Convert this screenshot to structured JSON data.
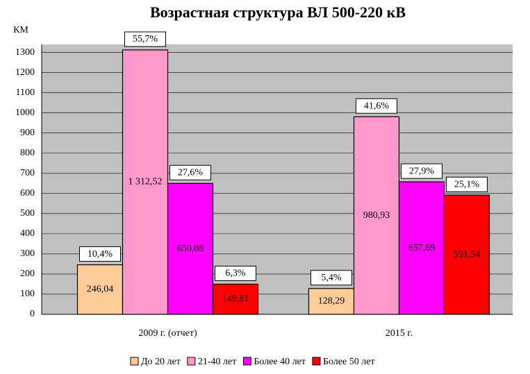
{
  "chart_data": {
    "type": "bar",
    "title": "Возрастная структура ВЛ 500-220 кВ",
    "y_axis_label": "КМ",
    "categories": [
      "2009 г. (отчет)",
      "2015 г."
    ],
    "series": [
      {
        "name": "До 20 лет",
        "color": "#ffcc99",
        "values": [
          246.04,
          128.29
        ],
        "value_labels": [
          "246,04",
          "128,29"
        ],
        "percent_labels": [
          "10,4%",
          "5,4%"
        ]
      },
      {
        "name": "21-40 лет",
        "color": "#ff99cc",
        "values": [
          1312.52,
          980.93
        ],
        "value_labels": [
          "1 312,52",
          "980,93"
        ],
        "percent_labels": [
          "55,7%",
          "41,6%"
        ]
      },
      {
        "name": "Более 40 лет",
        "color": "#ff00ff",
        "values": [
          650.08,
          657.69
        ],
        "value_labels": [
          "650,08",
          "657,69"
        ],
        "percent_labels": [
          "27,6%",
          "27,9%"
        ]
      },
      {
        "name": "Более 50 лет",
        "color": "#ff0000",
        "values": [
          149.81,
          591.54
        ],
        "value_labels": [
          "149,81",
          "591,54"
        ],
        "percent_labels": [
          "6,3%",
          "25,1%"
        ]
      }
    ],
    "ylim": [
      0,
      1340
    ],
    "yticks": [
      0,
      100,
      200,
      300,
      400,
      500,
      600,
      700,
      800,
      900,
      1000,
      1100,
      1200,
      1300
    ],
    "grid": true,
    "legend": "bottom"
  }
}
